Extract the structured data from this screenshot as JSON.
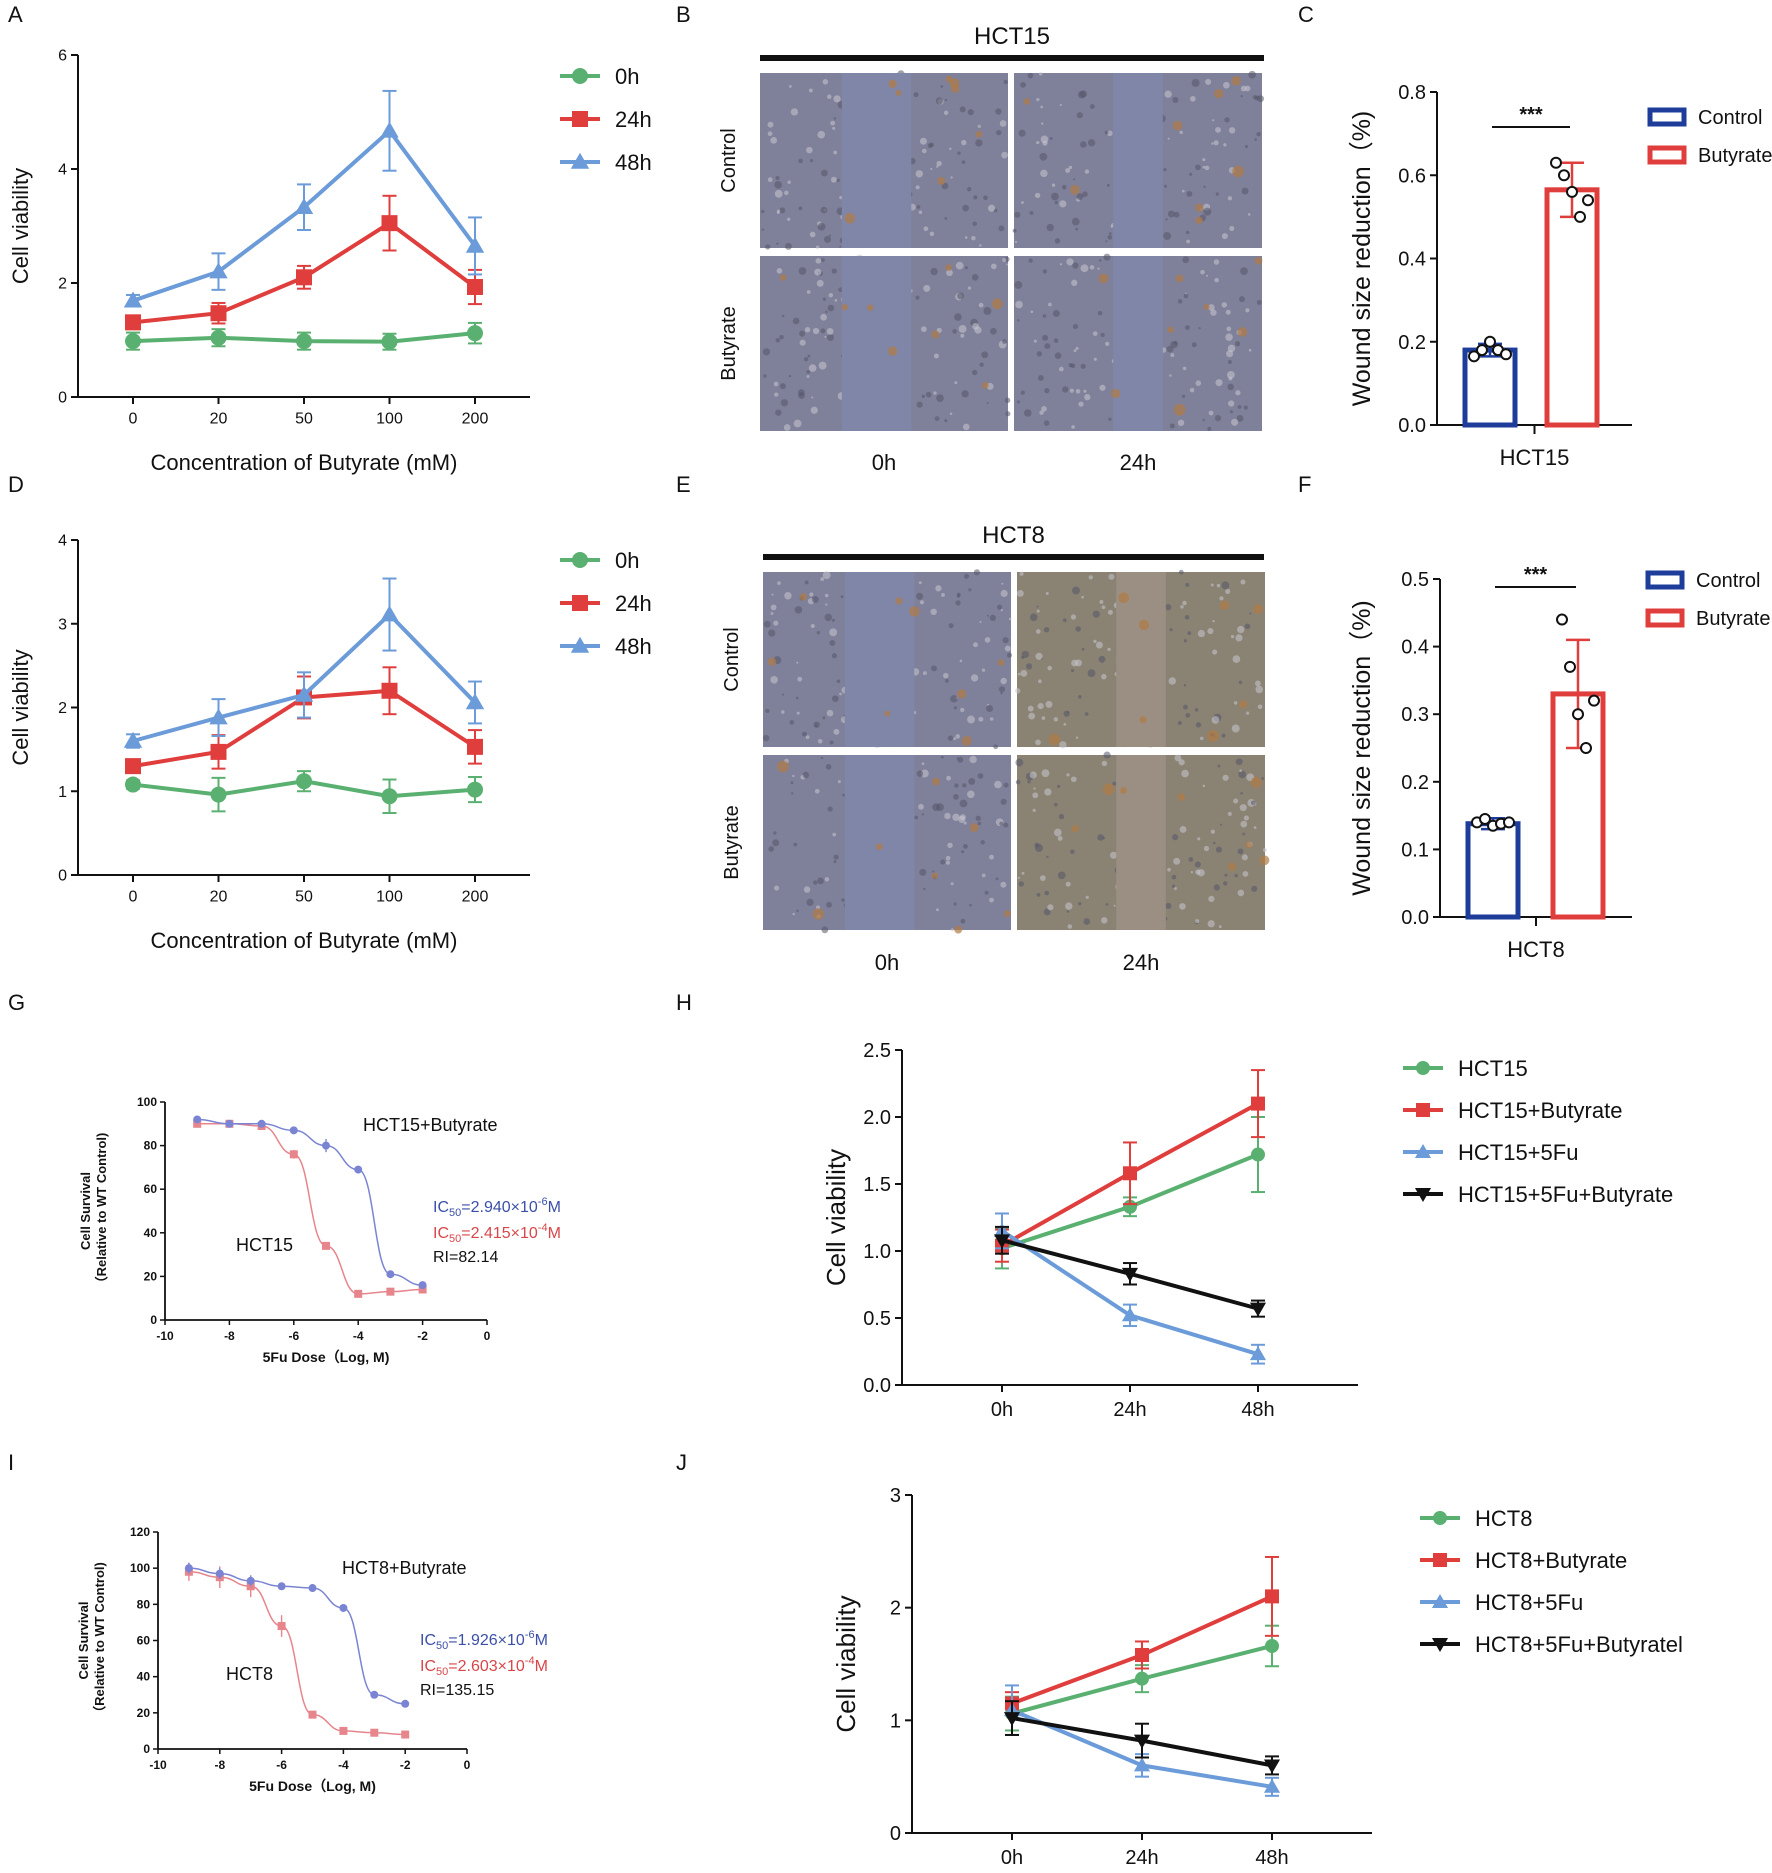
{
  "colors": {
    "green": "#5ab070",
    "red": "#e03d3d",
    "blue": "#6b9bd8",
    "black": "#111111",
    "dark_blue": "#1e3d9a",
    "ic_blue": "#3b4fa8",
    "ic_red": "#d8464a",
    "fit_blue": "#7a84d2",
    "fit_red": "#e7858c"
  },
  "chart_data": [
    {
      "panel": "A",
      "type": "line",
      "categories": [
        "0",
        "20",
        "50",
        "100",
        "200"
      ],
      "xlabel": "Concentration of Butyrate (mM)",
      "ylabel": "Cell viability",
      "ylim": [
        0,
        6
      ],
      "yticks": [
        "0",
        "2",
        "4",
        "6"
      ],
      "legend": [
        "0h",
        "24h",
        "48h"
      ],
      "series": [
        {
          "name": "0h",
          "values": [
            0.98,
            1.04,
            0.98,
            0.97,
            1.12
          ],
          "err": [
            0.15,
            0.15,
            0.15,
            0.14,
            0.18
          ]
        },
        {
          "name": "24h",
          "values": [
            1.31,
            1.47,
            2.1,
            3.05,
            1.93
          ],
          "err": [
            0.12,
            0.18,
            0.2,
            0.48,
            0.3
          ]
        },
        {
          "name": "48h",
          "values": [
            1.69,
            2.2,
            3.33,
            4.67,
            2.65
          ],
          "err": [
            0.1,
            0.32,
            0.4,
            0.7,
            0.5
          ]
        }
      ]
    },
    {
      "panel": "B",
      "type": "image",
      "title": "HCT15",
      "columns": [
        "0h",
        "24h"
      ],
      "rows": [
        "Control",
        "Butyrate"
      ]
    },
    {
      "panel": "C",
      "type": "bar",
      "categories": [
        "HCT15"
      ],
      "ylabel": "Wound size reduction（%)",
      "ylim": [
        0,
        0.8
      ],
      "yticks": [
        "0.0",
        "0.2",
        "0.4",
        "0.6",
        "0.8"
      ],
      "legend": [
        "Control",
        "Butyrate"
      ],
      "significance": "***",
      "series": [
        {
          "name": "Control",
          "value": 0.18,
          "err": 0.015,
          "points": [
            0.165,
            0.18,
            0.2,
            0.18,
            0.17
          ]
        },
        {
          "name": "Butyrate",
          "value": 0.565,
          "err": 0.065,
          "points": [
            0.63,
            0.6,
            0.56,
            0.5,
            0.54
          ]
        }
      ]
    },
    {
      "panel": "D",
      "type": "line",
      "categories": [
        "0",
        "20",
        "50",
        "100",
        "200"
      ],
      "xlabel": "Concentration of Butyrate (mM)",
      "ylabel": "Cell viability",
      "ylim": [
        0,
        4
      ],
      "yticks": [
        "0",
        "1",
        "2",
        "3",
        "4"
      ],
      "legend": [
        "0h",
        "24h",
        "48h"
      ],
      "series": [
        {
          "name": "0h",
          "values": [
            1.08,
            0.96,
            1.12,
            0.94,
            1.02
          ],
          "err": [
            0.05,
            0.2,
            0.12,
            0.2,
            0.15
          ]
        },
        {
          "name": "24h",
          "values": [
            1.3,
            1.47,
            2.12,
            2.2,
            1.53
          ],
          "err": [
            0.05,
            0.2,
            0.25,
            0.28,
            0.2
          ]
        },
        {
          "name": "48h",
          "values": [
            1.6,
            1.88,
            2.15,
            3.11,
            2.06
          ],
          "err": [
            0.08,
            0.22,
            0.27,
            0.43,
            0.25
          ]
        }
      ]
    },
    {
      "panel": "E",
      "type": "image",
      "title": "HCT8",
      "columns": [
        "0h",
        "24h"
      ],
      "rows": [
        "Control",
        "Butyrate"
      ]
    },
    {
      "panel": "F",
      "type": "bar",
      "categories": [
        "HCT8"
      ],
      "ylabel": "Wound size reduction（%)",
      "ylim": [
        0,
        0.5
      ],
      "yticks": [
        "0.0",
        "0.1",
        "0.2",
        "0.3",
        "0.4",
        "0.5"
      ],
      "legend": [
        "Control",
        "Butyrate"
      ],
      "significance": "***",
      "series": [
        {
          "name": "Control",
          "value": 0.138,
          "err": 0.008,
          "points": [
            0.14,
            0.145,
            0.135,
            0.138,
            0.14
          ]
        },
        {
          "name": "Butyrate",
          "value": 0.33,
          "err": 0.08,
          "points": [
            0.44,
            0.37,
            0.3,
            0.25,
            0.32
          ]
        }
      ]
    },
    {
      "panel": "G",
      "type": "scatter",
      "xlabel": "5Fu Dose（Log, M)",
      "ylabel": "Cell Survival",
      "ylabel2": "（Relative to WT Control)",
      "xlim": [
        -10,
        0
      ],
      "ylim": [
        0,
        100
      ],
      "xticks": [
        "-10",
        "-8",
        "-6",
        "-4",
        "-2",
        "0"
      ],
      "yticks": [
        "0",
        "20",
        "40",
        "60",
        "80",
        "100"
      ],
      "annotations": {
        "label_top": "HCT15+Butyrate",
        "label_bottom": "HCT15",
        "ic_blue_base": "IC",
        "ic_blue_sub": "50",
        "ic_blue_val": "=2.940×10",
        "ic_blue_exp": "-6",
        "ic_blue_unit": "M",
        "ic_red_base": "IC",
        "ic_red_sub": "50",
        "ic_red_val": "=2.415×10",
        "ic_red_exp": "-4",
        "ic_red_unit": "M",
        "ri": "RI=82.14"
      },
      "series": [
        {
          "name": "HCT15",
          "x": [
            -9,
            -8,
            -7,
            -6,
            -5,
            -4,
            -3,
            -2
          ],
          "y": [
            90,
            90,
            89,
            76,
            34,
            12,
            13,
            14
          ],
          "err": [
            1.5,
            1,
            1,
            2,
            1.5,
            1,
            1,
            1
          ]
        },
        {
          "name": "HCT15+Butyrate",
          "x": [
            -9,
            -8,
            -7,
            -6,
            -5,
            -4,
            -3,
            -2
          ],
          "y": [
            92,
            90,
            90,
            87,
            80,
            69,
            21,
            16
          ],
          "err": [
            1.5,
            1,
            1,
            1,
            3,
            1,
            1,
            1
          ]
        }
      ]
    },
    {
      "panel": "H",
      "type": "line",
      "categories": [
        "0h",
        "24h",
        "48h"
      ],
      "ylabel": "Cell viability",
      "ylim": [
        0,
        2.5
      ],
      "yticks": [
        "0.0",
        "0.5",
        "1.0",
        "1.5",
        "2.0",
        "2.5"
      ],
      "legend": [
        "HCT15",
        "HCT15+Butyrate",
        "HCT15+5Fu",
        "HCT15+5Fu+Butyrate"
      ],
      "series": [
        {
          "name": "HCT15",
          "values": [
            1.02,
            1.33,
            1.72
          ],
          "err": [
            0.15,
            0.07,
            0.28
          ]
        },
        {
          "name": "HCT15+Butyrate",
          "values": [
            1.04,
            1.58,
            2.1
          ],
          "err": [
            0.12,
            0.23,
            0.25
          ]
        },
        {
          "name": "HCT15+5Fu",
          "values": [
            1.15,
            0.52,
            0.23
          ],
          "err": [
            0.13,
            0.08,
            0.07
          ]
        },
        {
          "name": "HCT15+5Fu+Butyrate",
          "values": [
            1.08,
            0.83,
            0.57
          ],
          "err": [
            0.1,
            0.08,
            0.06
          ]
        }
      ]
    },
    {
      "panel": "I",
      "type": "scatter",
      "xlabel": "5Fu Dose（Log, M)",
      "ylabel": "Cell Survival",
      "ylabel2": "（Relative to WT Control)",
      "xlim": [
        -10,
        0
      ],
      "ylim": [
        0,
        120
      ],
      "xticks": [
        "-10",
        "-8",
        "-6",
        "-4",
        "-2",
        "0"
      ],
      "yticks": [
        "0",
        "20",
        "40",
        "60",
        "80",
        "100",
        "120"
      ],
      "annotations": {
        "label_top": "HCT8+Butyrate",
        "label_bottom": "HCT8",
        "ic_blue_base": "IC",
        "ic_blue_sub": "50",
        "ic_blue_val": "=1.926×10",
        "ic_blue_exp": "-6",
        "ic_blue_unit": "M",
        "ic_red_base": "IC",
        "ic_red_sub": "50",
        "ic_red_val": "=2.603×10",
        "ic_red_exp": "-4",
        "ic_red_unit": "M",
        "ri": "RI=135.15"
      },
      "series": [
        {
          "name": "HCT8",
          "x": [
            -9,
            -8,
            -7,
            -6,
            -5,
            -4,
            -3,
            -2
          ],
          "y": [
            98,
            95,
            90,
            68,
            19,
            10,
            9,
            8
          ],
          "err": [
            5,
            6,
            6,
            6,
            1,
            1,
            1,
            1
          ]
        },
        {
          "name": "HCT8+Butyrate",
          "x": [
            -9,
            -8,
            -7,
            -6,
            -5,
            -4,
            -3,
            -2
          ],
          "y": [
            100,
            97,
            93,
            90,
            89,
            78,
            30,
            25
          ],
          "err": [
            3,
            3,
            3,
            2,
            2,
            2,
            2,
            2
          ]
        }
      ]
    },
    {
      "panel": "J",
      "type": "line",
      "categories": [
        "0h",
        "24h",
        "48h"
      ],
      "ylabel": "Cell viability",
      "ylim": [
        0,
        3
      ],
      "yticks": [
        "0",
        "1",
        "2",
        "3"
      ],
      "legend": [
        "HCT8",
        "HCT8+Butyrate",
        "HCT8+5Fu",
        "HCT8+5Fu+Butyratel"
      ],
      "series": [
        {
          "name": "HCT8",
          "values": [
            1.06,
            1.37,
            1.66
          ],
          "err": [
            0.15,
            0.12,
            0.18
          ]
        },
        {
          "name": "HCT8+Butyrate",
          "values": [
            1.15,
            1.58,
            2.1
          ],
          "err": [
            0.1,
            0.12,
            0.35
          ]
        },
        {
          "name": "HCT8+5Fu",
          "values": [
            1.09,
            0.6,
            0.41
          ],
          "err": [
            0.22,
            0.1,
            0.08
          ]
        },
        {
          "name": "HCT8+5Fu+Butyratel",
          "values": [
            1.02,
            0.82,
            0.6
          ],
          "err": [
            0.15,
            0.15,
            0.08
          ]
        }
      ]
    }
  ]
}
